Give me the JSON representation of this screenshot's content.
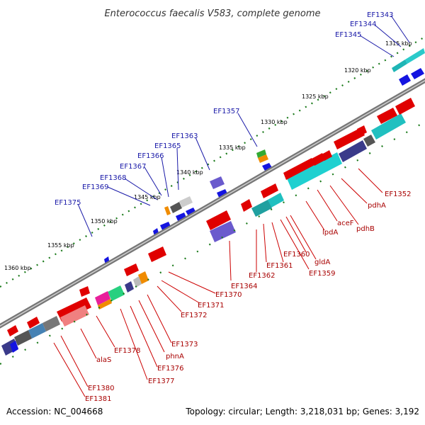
{
  "title": "Enterococcus faecalis V583, complete genome",
  "footer": {
    "accession": "Accession: NC_004668",
    "topology": "Topology: circular; Length: 3,218,031 bp; Genes: 3,192"
  },
  "colors": {
    "backbone": "#777777",
    "forward_label": "#1a1aa8",
    "reverse_label": "#a80000",
    "leader_forward": "#1a1aa8",
    "leader_reverse": "#cc0000",
    "tick": "#1a7a1a"
  },
  "scale_labels": [
    "1315 kbp",
    "1320 kbp",
    "1325 kbp",
    "1330 kbp",
    "1335 kbp",
    "1340 kbp",
    "1345 kbp",
    "1350 kbp",
    "1355 kbp",
    "1360 kbp"
  ],
  "labels_top": [
    "EF1343",
    "EF1344",
    "EF1345",
    "EF1357",
    "EF1363",
    "EF1365",
    "EF1366",
    "EF1367",
    "EF1368",
    "EF1369",
    "EF1375"
  ],
  "labels_bottom": [
    "EF1352",
    "pdhA",
    "pdhB",
    "aceF",
    "lpdA",
    "gldA",
    "EF1360",
    "EF1359",
    "EF1361",
    "EF1362",
    "EF1364",
    "EF1370",
    "EF1371",
    "EF1372",
    "EF1373",
    "phnA",
    "EF1376",
    "EF1377",
    "EF1378",
    "alaS",
    "EF1380",
    "EF1381"
  ]
}
